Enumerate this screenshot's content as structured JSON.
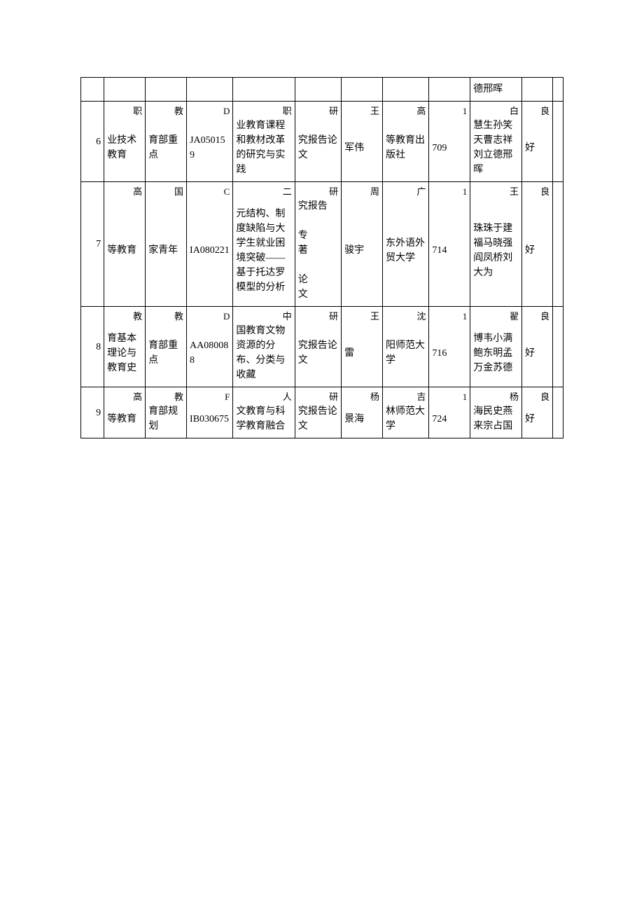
{
  "table": {
    "column_widths_pct": [
      4.5,
      8,
      8,
      9,
      12,
      9,
      8,
      9,
      8,
      10,
      6,
      2
    ],
    "border_color": "#000000",
    "background_color": "#ffffff",
    "font_size": 14,
    "rows": [
      {
        "idx": "",
        "c1_hang": "",
        "c1": "",
        "c2_hang": "",
        "c2": "",
        "c3_hang": "",
        "c3": "",
        "c4_hang": "",
        "c4": "",
        "c5_hang": "",
        "c5": "",
        "c6_hang": "",
        "c6": "",
        "c7_hang": "",
        "c7": "",
        "c8_hang": "",
        "c8": "",
        "c9_hang": "",
        "c9": "德邢晖",
        "c10_hang": "",
        "c10": "",
        "c11": ""
      },
      {
        "idx": "6",
        "c1_hang": "职",
        "c1": "业技术教育",
        "c2_hang": "教",
        "c2": "育部重点",
        "c3_hang": "D",
        "c3": "JA050159",
        "c4_hang": "职",
        "c4": "业教育课程和教材改革的研究与实践",
        "c5_hang": "研",
        "c5": "究报告论文",
        "c6_hang": "王",
        "c6": "军伟",
        "c7_hang": "高",
        "c7": "等教育出版社",
        "c8_hang": "1",
        "c8": "709",
        "c9_hang": "白",
        "c9": "慧生孙笑天曹志祥刘立德邢晖",
        "c10_hang": "良",
        "c10": "好",
        "c11": ""
      },
      {
        "idx": "7",
        "c1_hang": "高",
        "c1": "等教育",
        "c2_hang": "国",
        "c2": "家青年",
        "c3_hang": "C",
        "c3": "IA080221",
        "c4_hang": "二",
        "c4": "元结构、制度缺陷与大学生就业困境突破——基于托达罗模型的分析",
        "c5_hang": "研",
        "c5": "究报告\n\n 专\n著\n\n 论\n文",
        "c6_hang": "周",
        "c6": "骏宇",
        "c7_hang": "广",
        "c7": "东外语外贸大学",
        "c8_hang": "1",
        "c8": "714",
        "c9_hang": "王",
        "c9": "珠珠于建福马晓强阎凤桥刘大为",
        "c10_hang": "良",
        "c10": "好",
        "c11": ""
      },
      {
        "idx": "8",
        "c1_hang": "教",
        "c1": "育基本理论与教育史",
        "c2_hang": "教",
        "c2": "育部重点",
        "c3_hang": "D",
        "c3": "AA080088",
        "c4_hang": "中",
        "c4": "国教育文物资源的分布、分类与收藏",
        "c5_hang": "研",
        "c5": "究报告论文",
        "c6_hang": "王",
        "c6": "雷",
        "c7_hang": "沈",
        "c7": "阳师范大学",
        "c8_hang": "1",
        "c8": "716",
        "c9_hang": "翟",
        "c9": "博韦小满鲍东明孟万金苏德",
        "c10_hang": "良",
        "c10": "好",
        "c11": ""
      },
      {
        "idx": "9",
        "c1_hang": "高",
        "c1": "等教育",
        "c2_hang": "教",
        "c2": "育部规划",
        "c3_hang": "F",
        "c3": "IB030675",
        "c4_hang": "人",
        "c4": "文教育与科学教育融合",
        "c5_hang": "研",
        "c5": "究报告论文",
        "c6_hang": "杨",
        "c6": "景海",
        "c7_hang": "吉",
        "c7": "林师范大学",
        "c8_hang": "1",
        "c8": "724",
        "c9_hang": "杨",
        "c9": "海民史燕来宗占国",
        "c10_hang": "良",
        "c10": "好",
        "c11": ""
      }
    ]
  }
}
